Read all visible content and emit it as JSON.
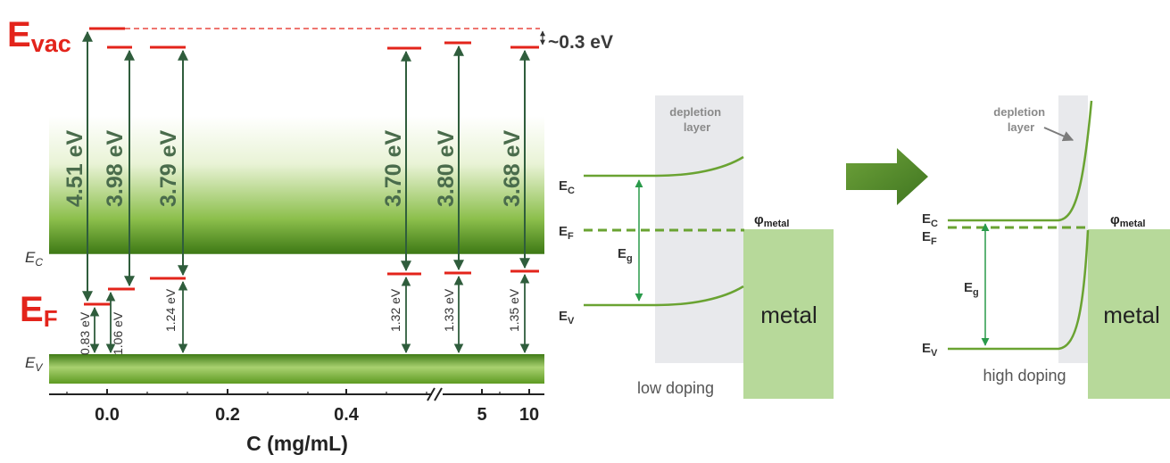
{
  "colors": {
    "red": "#e3241b",
    "dark_green": "#2f5d3c",
    "band_green": "#4f8a1f",
    "band_green_light": "#cfe6a8",
    "curve_green": "#6aa332",
    "metal": "#b7d99a",
    "depletion": "#e8e9ec",
    "arrow_green": "#5b8f2b",
    "text_grey": "#5a5a5a"
  },
  "left": {
    "evac_main": "E",
    "evac_sub": "vac",
    "ef_label": "E",
    "ef_sub": "F",
    "ec_main": "E",
    "ec_sub": "C",
    "ev_main": "E",
    "ev_sub": "V",
    "offset_label": "~0.3 eV",
    "work_functions": [
      "4.51 eV",
      "3.98 eV",
      "3.79 eV",
      "3.70 eV",
      "3.80 eV",
      "3.68 eV"
    ],
    "fermi_gaps": [
      "0.83 eV",
      "1.06 eV",
      "1.24 eV",
      "1.32 eV",
      "1.33 eV",
      "1.35 eV"
    ],
    "xaxis": {
      "label": "C (mg/mL)",
      "ticks": [
        "0.0",
        "0.2",
        "0.4",
        "5",
        "10"
      ]
    }
  },
  "low_doping": {
    "ec_main": "E",
    "ec_sub": "C",
    "ef_main": "E",
    "ef_sub": "F",
    "ev_main": "E",
    "ev_sub": "V",
    "eg_main": "E",
    "eg_sub": "g",
    "depletion_line1": "depletion",
    "depletion_line2": "layer",
    "phi_main": "φ",
    "phi_sub": "metal",
    "metal": "metal",
    "caption": "low doping"
  },
  "high_doping": {
    "ec_main": "E",
    "ec_sub": "C",
    "ef_main": "E",
    "ef_sub": "F",
    "ev_main": "E",
    "ev_sub": "V",
    "eg_main": "E",
    "eg_sub": "g",
    "depletion_line1": "depletion",
    "depletion_line2": "layer",
    "phi_main": "φ",
    "phi_sub": "metal",
    "metal": "metal",
    "caption": "high doping"
  }
}
